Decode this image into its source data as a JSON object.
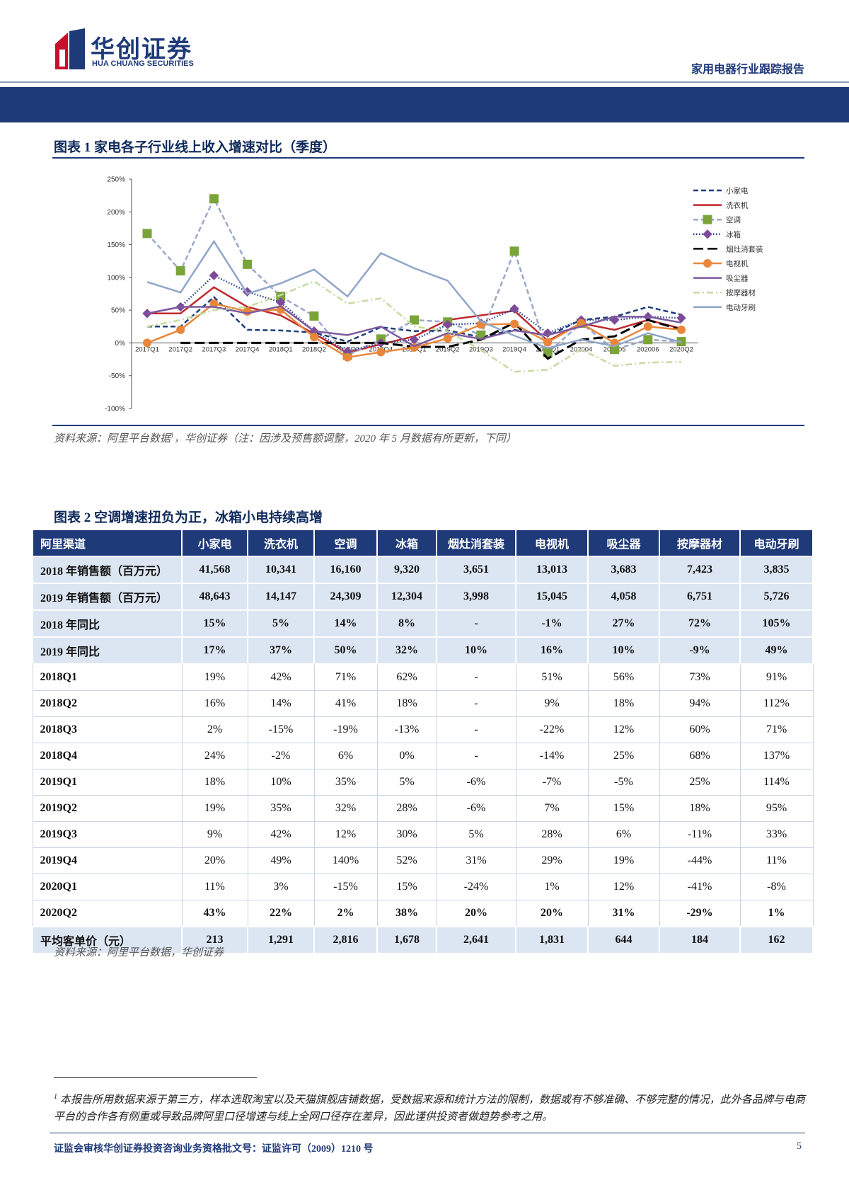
{
  "header": {
    "logo_cn": "华创证券",
    "logo_en": "HUA CHUANG SECURITIES",
    "report_type": "家用电器行业跟踪报告"
  },
  "figure1": {
    "caption": "图表 1  家电各子行业线上收入增速对比（季度）",
    "source": "资料来源：阿里平台数据",
    "source_ref": "1",
    "source_rest": "，华创证券（注：因涉及预售额调整，2020 年 5 月数据有所更新，下同）",
    "chart_data": {
      "type": "line",
      "categories": [
        "2017Q1",
        "2017Q2",
        "2017Q3",
        "2017Q4",
        "2018Q1",
        "2018Q2",
        "2018Q3",
        "2018Q4",
        "2019Q1",
        "2019Q2",
        "2019Q3",
        "2019Q4",
        "2020Q1",
        "202004",
        "202005",
        "202006",
        "2020Q2"
      ],
      "ylim": [
        -100,
        250
      ],
      "yticks": [
        {
          "value": -100,
          "label": "-100%"
        },
        {
          "value": -50,
          "label": "-50%"
        },
        {
          "value": 0,
          "label": "0%"
        },
        {
          "value": 50,
          "label": "50%"
        },
        {
          "value": 100,
          "label": "100%"
        },
        {
          "value": 150,
          "label": "150%"
        },
        {
          "value": 200,
          "label": "200%"
        },
        {
          "value": 250,
          "label": "250%"
        }
      ],
      "grid": false,
      "legend": "right",
      "series": [
        {
          "name": "小家电",
          "color": "#1f3f7a",
          "dash": "dashed",
          "marker": "none",
          "values": [
            25,
            25,
            70,
            20,
            19,
            16,
            2,
            24,
            18,
            19,
            9,
            20,
            11,
            35,
            40,
            55,
            43
          ]
        },
        {
          "name": "洗衣机",
          "color": "#c0282d",
          "dash": "solid",
          "marker": "none",
          "values": [
            45,
            45,
            85,
            55,
            42,
            14,
            -15,
            -2,
            10,
            35,
            42,
            49,
            3,
            30,
            20,
            35,
            22
          ]
        },
        {
          "name": "空调",
          "color": "#9aa7c8",
          "marker_color": "#7aa43a",
          "dash": "dashed",
          "marker": "square",
          "values": [
            167,
            110,
            220,
            120,
            71,
            41,
            -19,
            6,
            35,
            32,
            12,
            140,
            -15,
            30,
            -10,
            5,
            2
          ]
        },
        {
          "name": "冰箱",
          "color": "#2a3f8f",
          "marker_color": "#7d4b9a",
          "dash": "dotted",
          "marker": "diamond",
          "values": [
            45,
            55,
            103,
            78,
            62,
            18,
            -13,
            0,
            5,
            28,
            30,
            52,
            15,
            35,
            35,
            40,
            38
          ]
        },
        {
          "name": "烟灶消套装",
          "color": "#000000",
          "dash": "long",
          "marker": "none",
          "values": [
            null,
            0,
            0,
            0,
            0,
            0,
            0,
            0,
            -6,
            -6,
            5,
            31,
            -24,
            5,
            10,
            35,
            20
          ]
        },
        {
          "name": "电视机",
          "color": "#e8873a",
          "marker_color": "#e8873a",
          "dash": "solid",
          "marker": "circle",
          "values": [
            0,
            20,
            60,
            48,
            51,
            9,
            -22,
            -14,
            -7,
            7,
            28,
            29,
            1,
            30,
            0,
            25,
            20
          ]
        },
        {
          "name": "吸尘器",
          "color": "#7d5aa0",
          "dash": "solid",
          "marker": "none",
          "values": [
            45,
            55,
            55,
            45,
            56,
            18,
            12,
            25,
            -5,
            15,
            6,
            19,
            12,
            25,
            40,
            40,
            31
          ]
        },
        {
          "name": "按摩器材",
          "color": "#c5dba0",
          "dash": "dashdot",
          "marker": "none",
          "values": [
            25,
            35,
            50,
            55,
            73,
            94,
            60,
            68,
            25,
            18,
            -11,
            -44,
            -41,
            -10,
            -35,
            -30,
            -29
          ]
        },
        {
          "name": "电动牙刷",
          "color": "#8fa6c9",
          "dash": "solid",
          "marker": "none",
          "values": [
            93,
            77,
            155,
            75,
            91,
            112,
            71,
            137,
            114,
            95,
            33,
            11,
            -8,
            5,
            -5,
            15,
            1
          ]
        }
      ]
    }
  },
  "figure2": {
    "caption": "图表 2  空调增速扭负为正，冰箱小电持续高增",
    "table": {
      "header": [
        "阿里渠道",
        "小家电",
        "洗衣机",
        "空调",
        "冰箱",
        "烟灶消套装",
        "电视机",
        "吸尘器",
        "按摩器材",
        "电动牙刷"
      ],
      "rows": [
        [
          "2018 年销售额（百万元）",
          "41,568",
          "10,341",
          "16,160",
          "9,320",
          "3,651",
          "13,013",
          "3,683",
          "7,423",
          "3,835"
        ],
        [
          "2019 年销售额（百万元）",
          "48,643",
          "14,147",
          "24,309",
          "12,304",
          "3,998",
          "15,045",
          "4,058",
          "6,751",
          "5,726"
        ],
        [
          "2018 年同比",
          "15%",
          "5%",
          "14%",
          "8%",
          "-",
          "-1%",
          "27%",
          "72%",
          "105%"
        ],
        [
          "2019 年同比",
          "17%",
          "37%",
          "50%",
          "32%",
          "10%",
          "16%",
          "10%",
          "-9%",
          "49%"
        ],
        [
          "2018Q1",
          "19%",
          "42%",
          "71%",
          "62%",
          "-",
          "51%",
          "56%",
          "73%",
          "91%"
        ],
        [
          "2018Q2",
          "16%",
          "14%",
          "41%",
          "18%",
          "-",
          "9%",
          "18%",
          "94%",
          "112%"
        ],
        [
          "2018Q3",
          "2%",
          "-15%",
          "-19%",
          "-13%",
          "-",
          "-22%",
          "12%",
          "60%",
          "71%"
        ],
        [
          "2018Q4",
          "24%",
          "-2%",
          "6%",
          "0%",
          "-",
          "-14%",
          "25%",
          "68%",
          "137%"
        ],
        [
          "2019Q1",
          "18%",
          "10%",
          "35%",
          "5%",
          "-6%",
          "-7%",
          "-5%",
          "25%",
          "114%"
        ],
        [
          "2019Q2",
          "19%",
          "35%",
          "32%",
          "28%",
          "-6%",
          "7%",
          "15%",
          "18%",
          "95%"
        ],
        [
          "2019Q3",
          "9%",
          "42%",
          "12%",
          "30%",
          "5%",
          "28%",
          "6%",
          "-11%",
          "33%"
        ],
        [
          "2019Q4",
          "20%",
          "49%",
          "140%",
          "52%",
          "31%",
          "29%",
          "19%",
          "-44%",
          "11%"
        ],
        [
          "2020Q1",
          "11%",
          "3%",
          "-15%",
          "15%",
          "-24%",
          "1%",
          "12%",
          "-41%",
          "-8%"
        ],
        [
          "2020Q2",
          "43%",
          "22%",
          "2%",
          "38%",
          "20%",
          "20%",
          "31%",
          "-29%",
          "1%"
        ],
        [
          "平均客单价（元）",
          "213",
          "1,291",
          "2,816",
          "1,678",
          "2,641",
          "1,831",
          "644",
          "184",
          "162"
        ]
      ]
    },
    "source": "资料来源：阿里平台数据，华创证券"
  },
  "footnote": {
    "marker": "1",
    "text": "本报告所用数据来源于第三方，样本选取淘宝以及天猫旗舰店铺数据，受数据来源和统计方法的限制，数据或有不够准确、不够完整的情况，此外各品牌与电商平台的合作各有侧重或导致品牌阿里口径增速与线上全网口径存在差异，因此谨供投资者做趋势参考之用。"
  },
  "footer": {
    "license": "证监会审核华创证券投资咨询业务资格批文号：证监许可（2009）1210 号",
    "page": "5"
  }
}
